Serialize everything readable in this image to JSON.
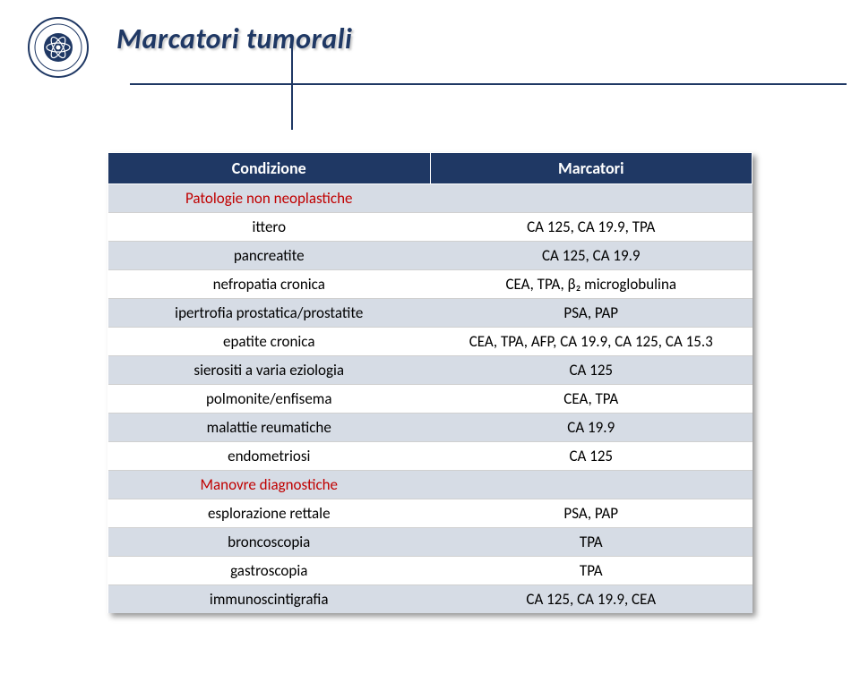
{
  "title": "Marcatori tumorali",
  "headers": {
    "col1": "Condizione",
    "col2": "Marcatori"
  },
  "rows": [
    {
      "c1": "Patologie non neoplastiche",
      "c2": "",
      "section": true
    },
    {
      "c1": "ittero",
      "c2": "CA 125, CA 19.9, TPA"
    },
    {
      "c1": "pancreatite",
      "c2": "CA 125, CA 19.9"
    },
    {
      "c1": "nefropatia cronica",
      "c2": "CEA, TPA, β₂ microglobulina"
    },
    {
      "c1": "ipertrofia prostatica/prostatite",
      "c2": "PSA, PAP"
    },
    {
      "c1": "epatite cronica",
      "c2": "CEA, TPA, AFP, CA 19.9, CA 125, CA 15.3"
    },
    {
      "c1": "sierositi a varia eziologia",
      "c2": "CA 125"
    },
    {
      "c1": "polmonite/enfisema",
      "c2": "CEA, TPA"
    },
    {
      "c1": "malattie reumatiche",
      "c2": "CA 19.9"
    },
    {
      "c1": "endometriosi",
      "c2": "CA 125"
    },
    {
      "c1": "Manovre diagnostiche",
      "c2": "",
      "section": true
    },
    {
      "c1": "esplorazione rettale",
      "c2": "PSA, PAP"
    },
    {
      "c1": "broncoscopia",
      "c2": "TPA"
    },
    {
      "c1": "gastroscopia",
      "c2": "TPA"
    },
    {
      "c1": "immunoscintigrafia",
      "c2": "CA 125, CA 19.9, CEA"
    }
  ],
  "colors": {
    "header_bg": "#1f3864",
    "header_fg": "#ffffff",
    "band_bg": "#d6dce5",
    "section_fg": "#c00000",
    "title_fg": "#1f3864"
  }
}
